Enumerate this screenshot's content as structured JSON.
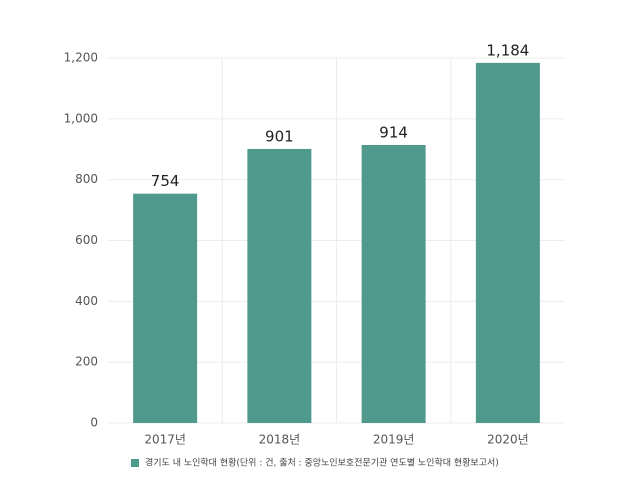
{
  "chart_data": {
    "type": "bar",
    "categories": [
      "2017년",
      "2018년",
      "2019년",
      "2020년"
    ],
    "series": [
      {
        "name": "경기도 내 노인학대 현황(단위 : 건, 출처 : 중앙노인보호전문기관 연도별 노인학대 현황보고서)",
        "color": "#4f9a8c",
        "values": [
          754,
          901,
          914,
          1184
        ],
        "value_labels": [
          "754",
          "901",
          "914",
          "1,184"
        ]
      }
    ],
    "ylim": [
      0,
      1200
    ],
    "yticks": [
      0,
      200,
      400,
      600,
      800,
      {
        "value": 1000,
        "label": "1,000"
      },
      {
        "value": 1200,
        "label": "1,200"
      }
    ],
    "grid": true,
    "legend": "bottom"
  }
}
